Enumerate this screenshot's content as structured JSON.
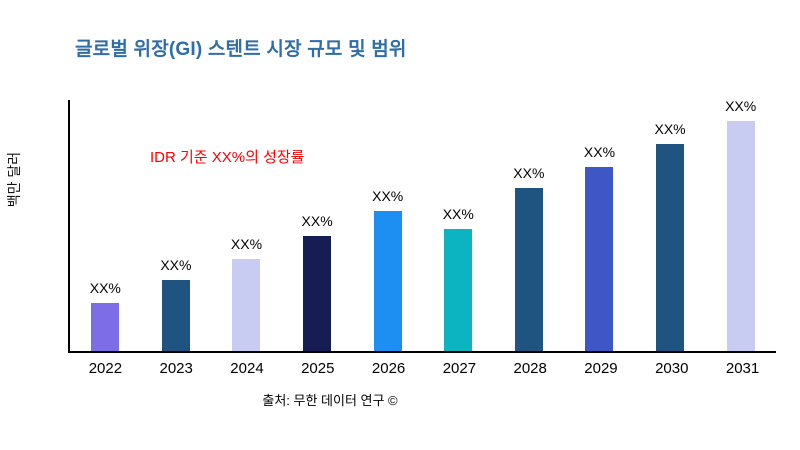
{
  "title": "글로벌 위장(GI) 스텐트 시장 규모 및 범위",
  "colors": {
    "title": "#2e6da8",
    "annotation": "#ff0000",
    "axis": "#000000"
  },
  "chart_data": {
    "type": "bar",
    "title": "글로벌 위장(GI) 스텐트 시장 규모 및 범위",
    "xlabel": "",
    "ylabel": "백만 달러",
    "annotation": "IDR 기준 XX%의 성장률",
    "source": "출처: 무한 데이터 연구 ©",
    "categories": [
      "2022",
      "2023",
      "2024",
      "2025",
      "2026",
      "2027",
      "2028",
      "2029",
      "2030",
      "2031"
    ],
    "values": [
      21,
      31,
      40,
      50,
      61,
      53,
      71,
      80,
      90,
      100
    ],
    "bar_labels": [
      "XX%",
      "XX%",
      "XX%",
      "XX%",
      "XX%",
      "XX%",
      "XX%",
      "XX%",
      "XX%",
      "XX%"
    ],
    "bar_colors": [
      "#7d6ee8",
      "#1f5380",
      "#c9ccf2",
      "#161c54",
      "#1e8ff2",
      "#0cb3c0",
      "#1f5380",
      "#3f57c6",
      "#1f5380",
      "#c9ccf2"
    ],
    "ylim": [
      0,
      100
    ],
    "grid": false,
    "legend": "none"
  }
}
